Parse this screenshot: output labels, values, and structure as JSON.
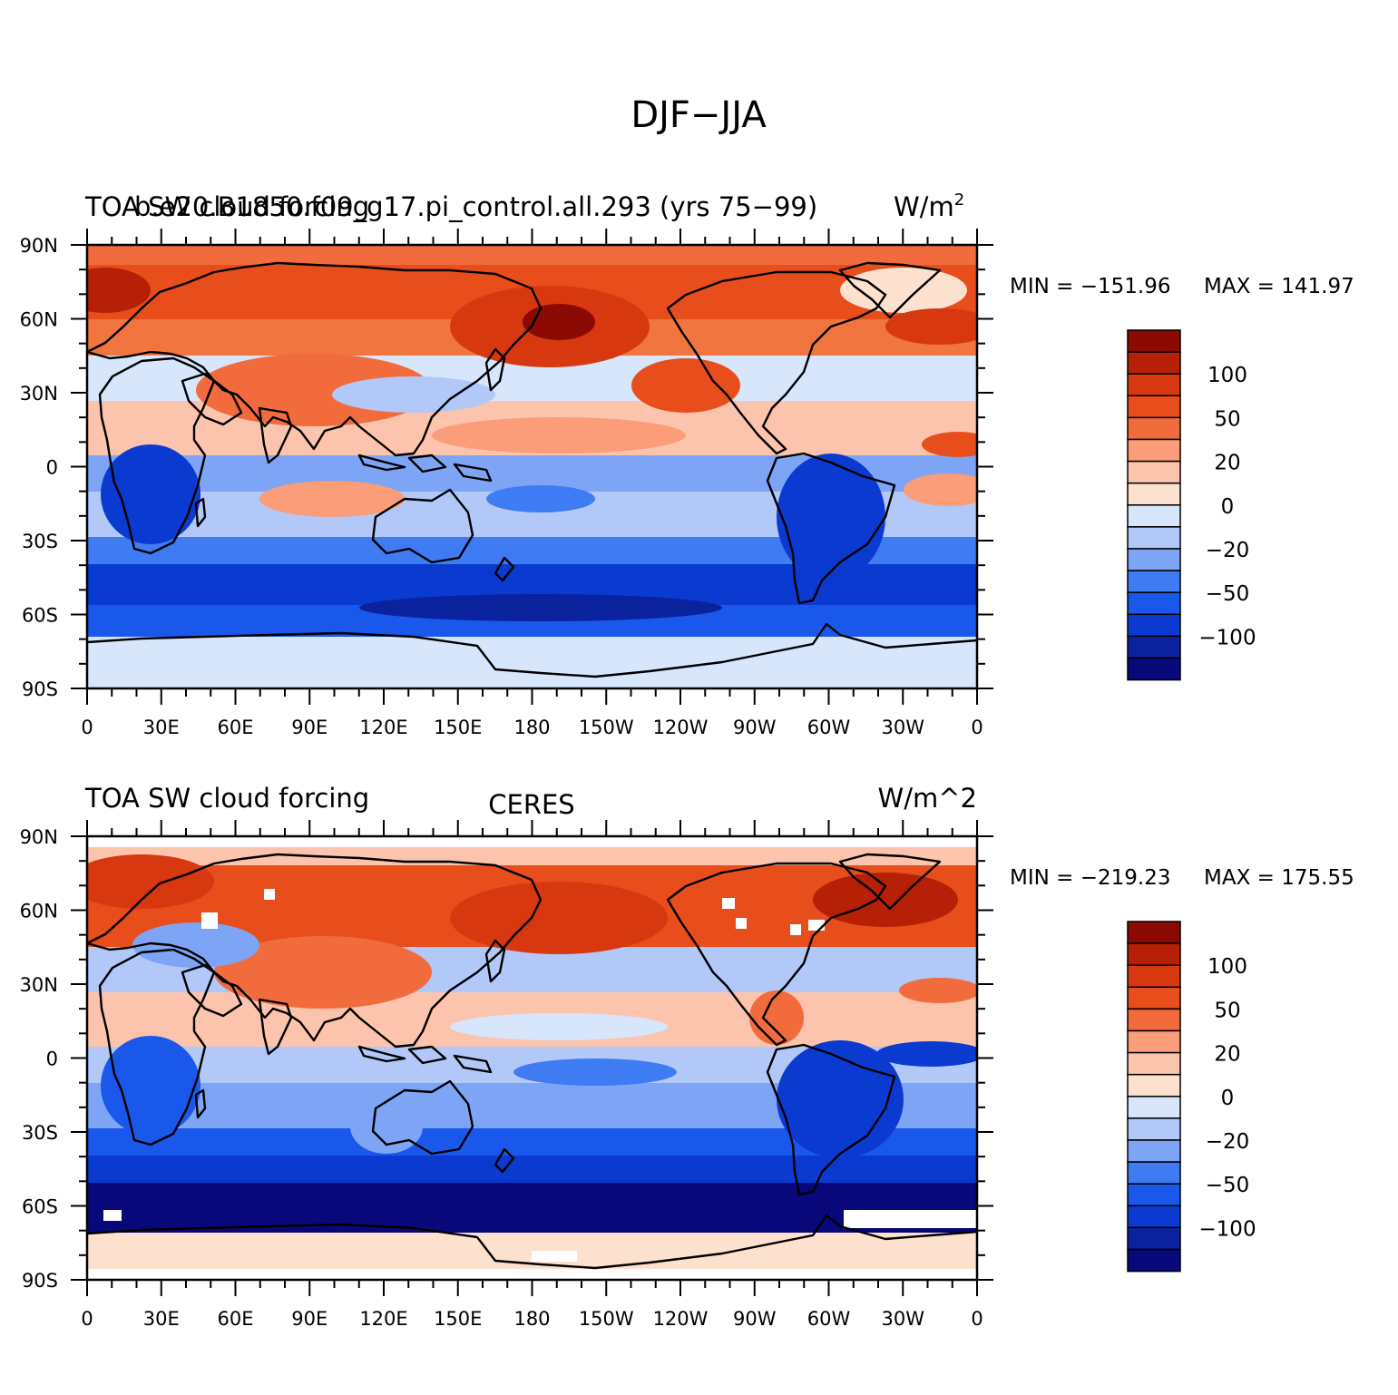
{
  "figure": {
    "title": "DJF−JJA"
  },
  "colorbar": {
    "colors": [
      "#08087a",
      "#0a229e",
      "#0b3ad0",
      "#1a58ec",
      "#3f7bf2",
      "#7ea4f6",
      "#b2c8f8",
      "#d7e6fb",
      "#fde1cf",
      "#fcc4ad",
      "#fa9d78",
      "#f26b3d",
      "#e84e1c",
      "#d7380f",
      "#b52006",
      "#8b0a03"
    ],
    "tick_labels": [
      "100",
      "50",
      "20",
      "0",
      "−20",
      "−50",
      "−100"
    ]
  },
  "axes": {
    "lat_labels": [
      "90N",
      "60N",
      "30N",
      "0",
      "30S",
      "60S",
      "90S"
    ],
    "lon_labels": [
      "0",
      "30E",
      "60E",
      "90E",
      "120E",
      "150E",
      "180",
      "150W",
      "120W",
      "90W",
      "60W",
      "30W",
      "0"
    ]
  },
  "panels": [
    {
      "left_title_a": "TOA SW cloud forcing",
      "left_title_b": "b.e20.B1850.f09_g17.pi_control.all.293 (yrs 75−99)",
      "center_title": "",
      "units_text": "W/m",
      "units_superscript": "2",
      "min_label": "MIN = −151.96",
      "max_label": "MAX = 141.97"
    },
    {
      "left_title_a": "TOA SW cloud forcing",
      "left_title_b": "",
      "center_title": "CERES",
      "units_text": "W/m^2",
      "units_superscript": "",
      "min_label": "MIN = −219.23",
      "max_label": "MAX = 175.55"
    }
  ]
}
